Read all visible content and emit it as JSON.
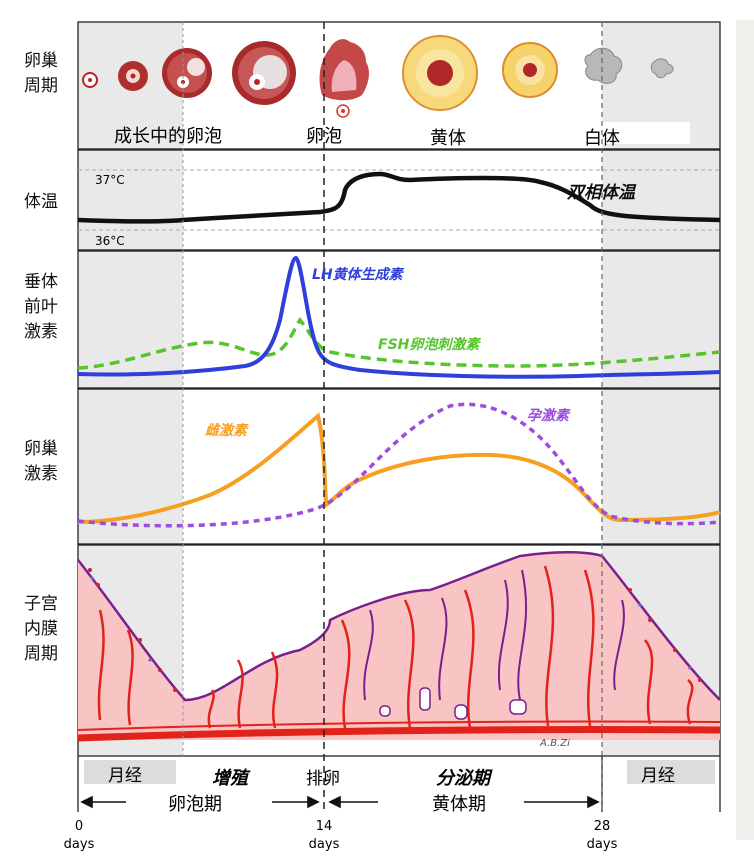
{
  "row_labels": {
    "ovarian_cycle": [
      "卵巢",
      "周期"
    ],
    "body_temp": "体温",
    "pituitary": [
      "垂体",
      "前叶",
      "激素"
    ],
    "ovarian_hormones": [
      "卵巢",
      "激素"
    ],
    "uterine_cycle": [
      "子宫",
      "内膜",
      "周期"
    ]
  },
  "ovary": {
    "growing_follicle": "成长中的卵泡",
    "follicle": "卵泡",
    "corpus_luteum": "黄体",
    "corpus_albicans": "白体"
  },
  "temperature": {
    "mark_high": "37°C",
    "mark_low": "36°C",
    "annotation": "双相体温"
  },
  "pituitary_hormones": {
    "lh_label": "LH黄体生成素",
    "fsh_label": "FSH卵泡刺激素"
  },
  "ovarian_hormone_labels": {
    "estrogen_label": "雌激素",
    "progesterone_label": "孕激素"
  },
  "endometrium": {
    "credit": "A.B.Zi"
  },
  "phases": {
    "menses_left": "月经",
    "proliferative": "增殖",
    "ovulation": "排卵",
    "secretory": "分泌期",
    "menses_right": "月经",
    "follicular_phase": "卵泡期",
    "luteal_phase": "黄体期"
  },
  "axis": {
    "ticks": [
      {
        "day": "0",
        "unit": "days"
      },
      {
        "day": "14",
        "unit": "days"
      },
      {
        "day": "28",
        "unit": "days"
      }
    ]
  },
  "colors": {
    "lh": "#2f3fdc",
    "fsh": "#55c52a",
    "estrogen": "#f7a020",
    "progesterone": "#9b4de0",
    "temperature": "#111111",
    "endometrium_fill": "#f9c4c4",
    "vessel": "#e2231a",
    "gland": "#7a1f8e",
    "menses_shade": "#e9e9e9"
  }
}
